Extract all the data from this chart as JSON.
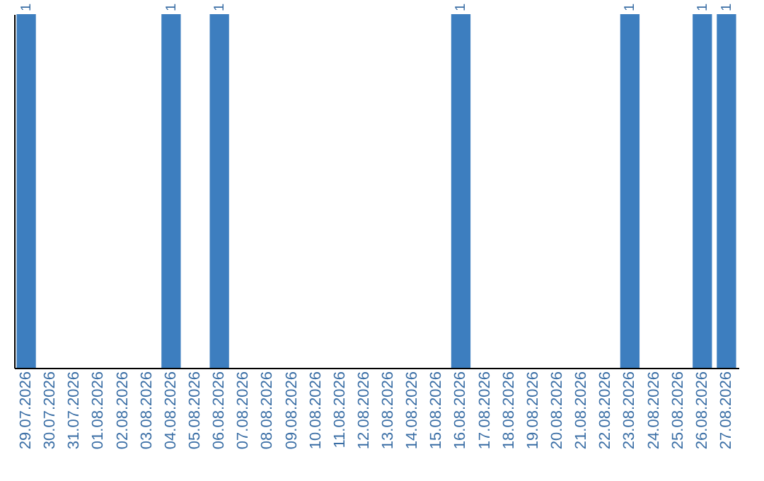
{
  "chart_data": {
    "type": "bar",
    "categories": [
      "29.07.2026",
      "30.07.2026",
      "31.07.2026",
      "01.08.2026",
      "02.08.2026",
      "03.08.2026",
      "04.08.2026",
      "05.08.2026",
      "06.08.2026",
      "07.08.2026",
      "08.08.2026",
      "09.08.2026",
      "10.08.2026",
      "11.08.2026",
      "12.08.2026",
      "13.08.2026",
      "14.08.2026",
      "15.08.2026",
      "16.08.2026",
      "17.08.2026",
      "18.08.2026",
      "19.08.2026",
      "20.08.2026",
      "21.08.2026",
      "22.08.2026",
      "23.08.2026",
      "24.08.2026",
      "25.08.2026",
      "26.08.2026",
      "27.08.2026"
    ],
    "values": [
      1,
      0,
      0,
      0,
      0,
      0,
      1,
      0,
      1,
      0,
      0,
      0,
      0,
      0,
      0,
      0,
      0,
      0,
      1,
      0,
      0,
      0,
      0,
      0,
      0,
      1,
      0,
      0,
      1,
      1
    ],
    "value_labels": [
      "1",
      null,
      null,
      null,
      null,
      null,
      "1",
      null,
      "1",
      null,
      null,
      null,
      null,
      null,
      null,
      null,
      null,
      null,
      "1",
      null,
      null,
      null,
      null,
      null,
      null,
      "1",
      null,
      null,
      "1",
      "1"
    ],
    "color": "#3d7ebf",
    "tick_labels": "x",
    "grid": false
  }
}
